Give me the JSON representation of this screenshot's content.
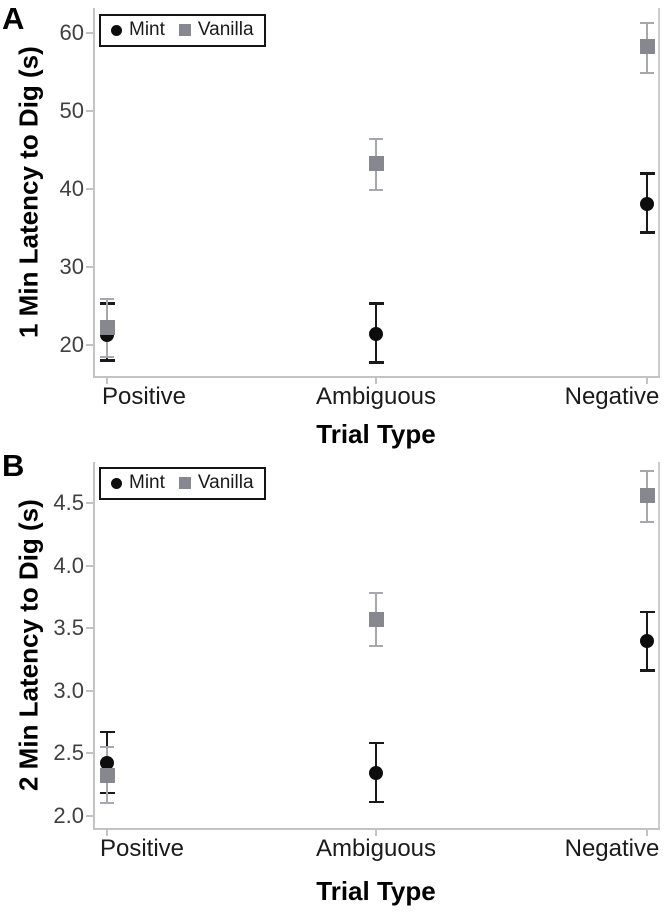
{
  "chart_data": [
    {
      "type": "scatter",
      "panel_label": "A",
      "xlabel": "Trial Type",
      "ylabel": "1 Min Latency to Dig (s)",
      "categories": [
        "Positive",
        "Ambiguous",
        "Negative"
      ],
      "y_tick_labels": [
        "20",
        "30",
        "40",
        "50",
        "60"
      ],
      "ylim": [
        16.0,
        63.2
      ],
      "grid": false,
      "legend_position": "top-left-inside",
      "error_bars": "mean ± error",
      "series": [
        {
          "name": "Mint",
          "marker": "circle",
          "color": "#0d0d0d",
          "error_color": "#1a1a1a",
          "means": [
            21.2,
            21.4,
            38.1
          ],
          "err_lo": [
            18.0,
            17.7,
            34.4
          ],
          "err_hi": [
            25.3,
            25.3,
            42.0
          ]
        },
        {
          "name": "Vanilla",
          "marker": "square",
          "color": "#87878f",
          "error_color": "#a7a7ae",
          "means": [
            22.2,
            43.3,
            58.2
          ],
          "err_lo": [
            18.5,
            39.9,
            54.9
          ],
          "err_hi": [
            25.9,
            46.4,
            61.3
          ]
        }
      ]
    },
    {
      "type": "scatter",
      "panel_label": "B",
      "xlabel": "Trial Type",
      "ylabel": "2 Min Latency to Dig (s)",
      "categories": [
        "Positive",
        "Ambiguous",
        "Negative"
      ],
      "y_tick_labels": [
        "2.0",
        "2.5",
        "3.0",
        "3.5",
        "4.0",
        "4.5"
      ],
      "ylim": [
        1.9,
        4.83
      ],
      "grid": false,
      "legend_position": "top-left-inside",
      "error_bars": "mean ± error",
      "series": [
        {
          "name": "Mint",
          "marker": "circle",
          "color": "#0d0d0d",
          "error_color": "#1a1a1a",
          "means": [
            2.42,
            2.34,
            3.4
          ],
          "err_lo": [
            2.18,
            2.11,
            3.16
          ],
          "err_hi": [
            2.67,
            2.58,
            3.63
          ]
        },
        {
          "name": "Vanilla",
          "marker": "square",
          "color": "#87878f",
          "error_color": "#a7a7ae",
          "means": [
            2.32,
            3.57,
            4.56
          ],
          "err_lo": [
            2.1,
            3.36,
            4.35
          ],
          "err_hi": [
            2.55,
            3.78,
            4.76
          ]
        }
      ]
    }
  ],
  "style": {
    "background": "#ffffff",
    "axis_line_color": "#c3c3c6",
    "tick_label_color": "#404040",
    "category_label_color": "#1b1b1b",
    "mint_color": "#0d0d0d",
    "vanilla_color": "#87878f",
    "vanilla_error_color": "#a7a7ae"
  }
}
